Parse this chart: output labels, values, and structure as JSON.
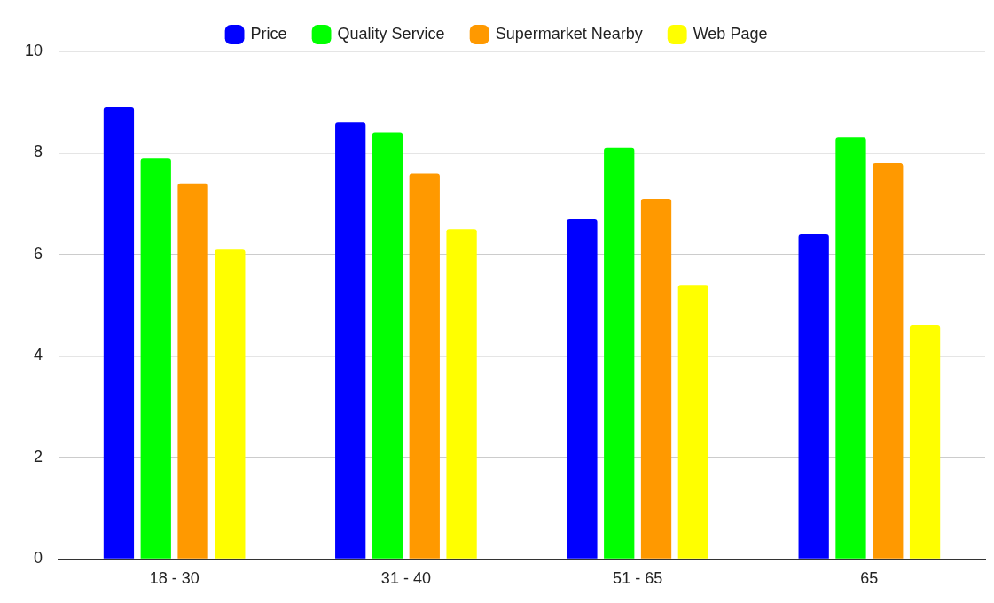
{
  "chart_data": {
    "type": "bar",
    "categories": [
      "18 - 30",
      "31 - 40",
      "51 - 65",
      "65"
    ],
    "series": [
      {
        "name": "Price",
        "color": "#0000ff",
        "values": [
          8.9,
          8.6,
          6.7,
          6.4
        ]
      },
      {
        "name": "Quality Service",
        "color": "#00ff00",
        "values": [
          7.9,
          8.4,
          8.1,
          8.3
        ]
      },
      {
        "name": "Supermarket Nearby",
        "color": "#ff9900",
        "values": [
          7.4,
          7.6,
          7.1,
          7.8
        ]
      },
      {
        "name": "Web Page",
        "color": "#ffff00",
        "values": [
          6.1,
          6.5,
          5.4,
          4.6
        ]
      }
    ],
    "ylim": [
      0,
      10
    ],
    "yticks": [
      0,
      2,
      4,
      6,
      8,
      10
    ],
    "grid": "y",
    "legend": "top"
  }
}
